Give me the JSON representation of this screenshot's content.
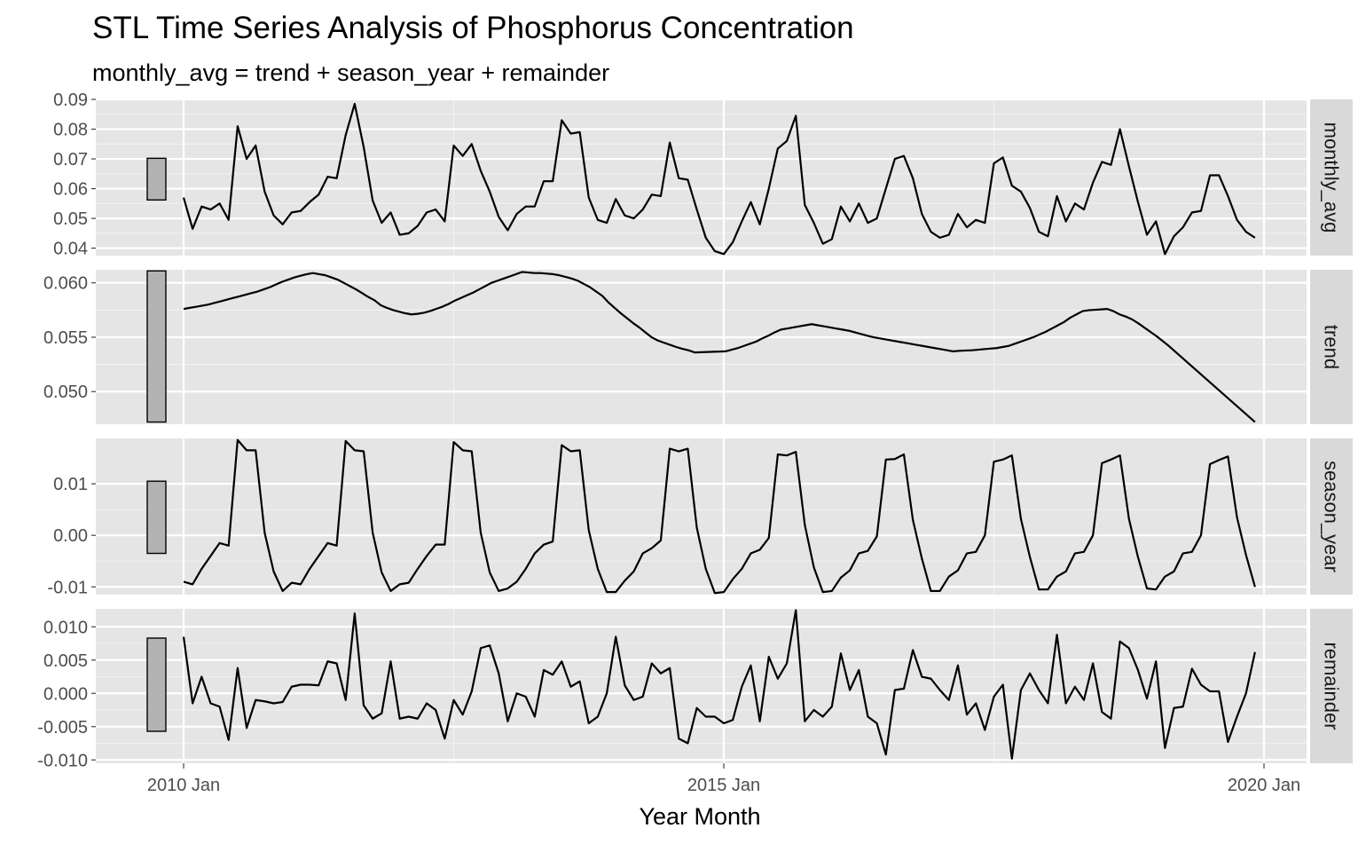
{
  "chart_data": {
    "type": "line",
    "title": "STL Time Series Analysis of Phosphorus Concentration",
    "subtitle": "monthly_avg = trend + season_year + remainder",
    "xlabel": "Year Month",
    "ylabel": "",
    "x_ticks": [
      "2010 Jan",
      "2015 Jan",
      "2020 Jan"
    ],
    "x_start": "2010 Jan",
    "x_end": "2019 Dec",
    "grid": true,
    "legend": "none",
    "line_color": "#000000",
    "panel_background": "#e5e5e5",
    "strip_background": "#d9d9d9",
    "scale_bar_fill": "#b3b3b3",
    "panels": [
      {
        "name": "monthly_avg",
        "ylim": [
          0.0375,
          0.09
        ],
        "y_ticks": [
          0.04,
          0.05,
          0.06,
          0.07,
          0.08,
          0.09
        ],
        "y_tick_labels": [
          "0.04",
          "0.05",
          "0.06",
          "0.07",
          "0.08",
          "0.09"
        ],
        "scale_bar": [
          0.0562,
          0.0702
        ],
        "values": [
          0.057,
          0.0465,
          0.054,
          0.053,
          0.055,
          0.0495,
          0.081,
          0.07,
          0.0745,
          0.059,
          0.051,
          0.048,
          0.052,
          0.0525,
          0.0555,
          0.058,
          0.064,
          0.0635,
          0.078,
          0.0885,
          0.074,
          0.056,
          0.0485,
          0.052,
          0.0445,
          0.045,
          0.0475,
          0.052,
          0.053,
          0.049,
          0.0745,
          0.071,
          0.075,
          0.066,
          0.059,
          0.0505,
          0.046,
          0.0515,
          0.054,
          0.054,
          0.0625,
          0.0625,
          0.083,
          0.0785,
          0.079,
          0.057,
          0.0495,
          0.0485,
          0.0565,
          0.051,
          0.05,
          0.053,
          0.058,
          0.0575,
          0.0755,
          0.0635,
          0.063,
          0.053,
          0.0435,
          0.039,
          0.038,
          0.042,
          0.049,
          0.0555,
          0.048,
          0.06,
          0.0735,
          0.076,
          0.0845,
          0.0545,
          0.0485,
          0.0415,
          0.043,
          0.054,
          0.049,
          0.055,
          0.0485,
          0.05,
          0.06,
          0.07,
          0.071,
          0.0635,
          0.0515,
          0.0455,
          0.0435,
          0.0445,
          0.0515,
          0.047,
          0.0495,
          0.0485,
          0.0685,
          0.0705,
          0.061,
          0.059,
          0.0535,
          0.0455,
          0.044,
          0.0575,
          0.049,
          0.055,
          0.053,
          0.062,
          0.069,
          0.068,
          0.08,
          0.0675,
          0.0555,
          0.0445,
          0.049,
          0.038,
          0.044,
          0.047,
          0.052,
          0.0525,
          0.0645,
          0.0645,
          0.0575,
          0.0495,
          0.0455,
          0.0435
        ]
      },
      {
        "name": "trend",
        "ylim": [
          0.047,
          0.0612
        ],
        "y_ticks": [
          0.05,
          0.055,
          0.06
        ],
        "y_tick_labels": [
          "0.050",
          "0.055",
          "0.060"
        ],
        "scale_bar": [
          0.0472,
          0.0611
        ],
        "values": [
          0.0576,
          0.0577,
          0.0578,
          0.0579,
          0.058,
          0.05815,
          0.0583,
          0.05845,
          0.0586,
          0.05875,
          0.0589,
          0.05905,
          0.0592,
          0.0594,
          0.0596,
          0.05985,
          0.0601,
          0.0603,
          0.0605,
          0.06065,
          0.0608,
          0.0609,
          0.0608,
          0.0607,
          0.0605,
          0.0603,
          0.06,
          0.0597,
          0.0594,
          0.05905,
          0.0587,
          0.0584,
          0.05795,
          0.0577,
          0.0575,
          0.05735,
          0.0572,
          0.0571,
          0.05715,
          0.05725,
          0.0574,
          0.0576,
          0.0578,
          0.05805,
          0.05835,
          0.0586,
          0.05885,
          0.0591,
          0.0594,
          0.0597,
          0.06,
          0.0602,
          0.0604,
          0.0606,
          0.0608,
          0.061,
          0.06095,
          0.0609,
          0.0609,
          0.06085,
          0.0608,
          0.0607,
          0.06055,
          0.0604,
          0.0602,
          0.0599,
          0.0596,
          0.0592,
          0.0588,
          0.0582,
          0.0577,
          0.0572,
          0.05675,
          0.0563,
          0.0559,
          0.05545,
          0.055,
          0.0547,
          0.0545,
          0.0543,
          0.0541,
          0.05393,
          0.0538,
          0.0536,
          0.05362,
          0.05364,
          0.05366,
          0.05368,
          0.0537,
          0.05385,
          0.054,
          0.0542,
          0.0544,
          0.0546,
          0.0549,
          0.05515,
          0.05545,
          0.0557,
          0.0558,
          0.0559,
          0.056,
          0.0561,
          0.0562,
          0.0561,
          0.056,
          0.0559,
          0.0558,
          0.0557,
          0.0556,
          0.05545,
          0.0553,
          0.05515,
          0.055,
          0.0549,
          0.0548,
          0.0547,
          0.0546,
          0.0545,
          0.0544,
          0.0543,
          0.0542,
          0.0541,
          0.054,
          0.0539,
          0.0538,
          0.0537,
          0.05375,
          0.05378,
          0.0538,
          0.05385,
          0.0539,
          0.05395,
          0.054,
          0.0541,
          0.0542,
          0.0544,
          0.0546,
          0.0548,
          0.055,
          0.05525,
          0.0555,
          0.0558,
          0.0561,
          0.0564,
          0.0568,
          0.0571,
          0.0574,
          0.05748,
          0.05752,
          0.05756,
          0.0576,
          0.0574,
          0.0571,
          0.0569,
          0.05665,
          0.0563,
          0.0559,
          0.0555,
          0.0551,
          0.05465,
          0.0542,
          0.0537,
          0.0532,
          0.0527,
          0.0522,
          0.0517,
          0.0512,
          0.0507,
          0.0502,
          0.0497,
          0.0492,
          0.0487,
          0.0482,
          0.0477,
          0.0472
        ]
      },
      {
        "name": "season_year",
        "ylim": [
          -0.0115,
          0.0188
        ],
        "y_ticks": [
          -0.01,
          0.0,
          0.01
        ],
        "y_tick_labels": [
          "-0.01",
          "0.00",
          "0.01"
        ],
        "scale_bar": [
          -0.0035,
          0.0105
        ],
        "values": [
          -0.009,
          -0.0095,
          -0.0065,
          -0.004,
          -0.0015,
          -0.002,
          0.0185,
          0.0165,
          0.0165,
          0.0005,
          -0.007,
          -0.0108,
          -0.0092,
          -0.0095,
          -0.0065,
          -0.004,
          -0.0015,
          -0.002,
          0.0183,
          0.0165,
          0.0163,
          0.0005,
          -0.0072,
          -0.0108,
          -0.0095,
          -0.0092,
          -0.0065,
          -0.004,
          -0.0018,
          -0.0018,
          0.0181,
          0.0165,
          0.0163,
          0.0005,
          -0.0072,
          -0.0108,
          -0.0103,
          -0.009,
          -0.0065,
          -0.0035,
          -0.0018,
          -0.0012,
          0.0175,
          0.0163,
          0.0165,
          0.001,
          -0.0065,
          -0.011,
          -0.011,
          -0.0088,
          -0.007,
          -0.0035,
          -0.0025,
          -0.001,
          0.0168,
          0.0163,
          0.0168,
          0.0015,
          -0.0065,
          -0.0112,
          -0.011,
          -0.0085,
          -0.0065,
          -0.0035,
          -0.0028,
          -0.0005,
          0.0157,
          0.0155,
          0.0162,
          0.002,
          -0.0062,
          -0.011,
          -0.0108,
          -0.0082,
          -0.0068,
          -0.0035,
          -0.003,
          -0.0002,
          0.0147,
          0.0148,
          0.0157,
          0.003,
          -0.0045,
          -0.0108,
          -0.0108,
          -0.008,
          -0.0068,
          -0.0035,
          -0.0032,
          0.0,
          0.0143,
          0.0147,
          0.0155,
          0.0032,
          -0.0042,
          -0.0105,
          -0.0105,
          -0.008,
          -0.007,
          -0.0035,
          -0.0032,
          0.0,
          0.014,
          0.0147,
          0.0155,
          0.0032,
          -0.0042,
          -0.0103,
          -0.0105,
          -0.008,
          -0.007,
          -0.0035,
          -0.0032,
          0.0,
          0.0138,
          0.0146,
          0.0153,
          0.0035,
          -0.0038,
          -0.01
        ]
      },
      {
        "name": "remainder",
        "ylim": [
          -0.0105,
          0.0127
        ],
        "y_ticks": [
          -0.01,
          -0.005,
          0.0,
          0.005,
          0.01
        ],
        "y_tick_labels": [
          "-0.010",
          "-0.005",
          "0.000",
          "0.005",
          "0.010"
        ],
        "scale_bar": [
          -0.0057,
          0.0083
        ],
        "values": [
          0.0085,
          -0.0015,
          0.0025,
          -0.0015,
          -0.002,
          -0.007,
          0.0038,
          -0.0052,
          -0.001,
          -0.0012,
          -0.0015,
          -0.0013,
          0.001,
          0.0013,
          0.0013,
          0.0012,
          0.0048,
          0.0045,
          -0.001,
          0.012,
          -0.0018,
          -0.0038,
          -0.003,
          0.0048,
          -0.0038,
          -0.0035,
          -0.0038,
          -0.0015,
          -0.0025,
          -0.0068,
          -0.001,
          -0.0032,
          0.0003,
          0.0068,
          0.0072,
          0.003,
          -0.0042,
          0.0,
          -0.0005,
          -0.0035,
          0.0035,
          0.0028,
          0.0048,
          0.001,
          0.0018,
          -0.0045,
          -0.0035,
          0.0,
          0.0085,
          0.0012,
          -0.001,
          -0.0005,
          0.0045,
          0.003,
          0.0038,
          -0.0068,
          -0.0075,
          -0.0022,
          -0.0035,
          -0.0035,
          -0.0045,
          -0.004,
          0.001,
          0.0042,
          -0.0042,
          0.0055,
          0.0022,
          0.0045,
          0.0125,
          -0.0042,
          -0.0025,
          -0.0035,
          -0.002,
          0.006,
          0.0005,
          0.0035,
          -0.0035,
          -0.0045,
          -0.0092,
          0.0005,
          0.0007,
          0.0065,
          0.0025,
          0.0022,
          0.0005,
          -0.001,
          0.0042,
          -0.0032,
          -0.0015,
          -0.0055,
          -0.0005,
          0.0013,
          -0.0098,
          0.0005,
          0.003,
          0.0005,
          -0.0015,
          0.0088,
          -0.0015,
          0.001,
          -0.001,
          0.0045,
          -0.0028,
          -0.0038,
          0.0078,
          0.0068,
          0.0035,
          -0.0008,
          0.0048,
          -0.0082,
          -0.0022,
          -0.002,
          0.0037,
          0.0013,
          0.0003,
          0.0003,
          -0.0073,
          -0.0035,
          0.0,
          0.0062
        ]
      }
    ]
  }
}
